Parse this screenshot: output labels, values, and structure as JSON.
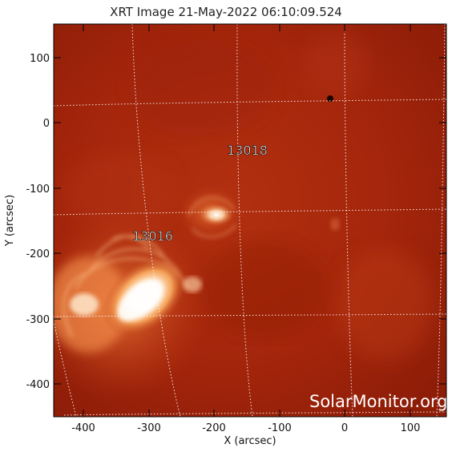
{
  "title": "XRT Image 21-May-2022 06:10:09.524",
  "xlabel": "X (arcsec)",
  "ylabel": "Y (arcsec)",
  "x_ticks": [
    "-400",
    "-300",
    "-200",
    "-100",
    "0",
    "100"
  ],
  "y_ticks": [
    "100",
    "0",
    "-100",
    "-200",
    "-300",
    "-400"
  ],
  "active_regions": [
    {
      "label": "13018"
    },
    {
      "label": "13016"
    }
  ],
  "watermark": "SolarMonitor.org",
  "colors": {
    "background": "#a3230b",
    "bright": "#ffffff",
    "frame": "#000000"
  }
}
